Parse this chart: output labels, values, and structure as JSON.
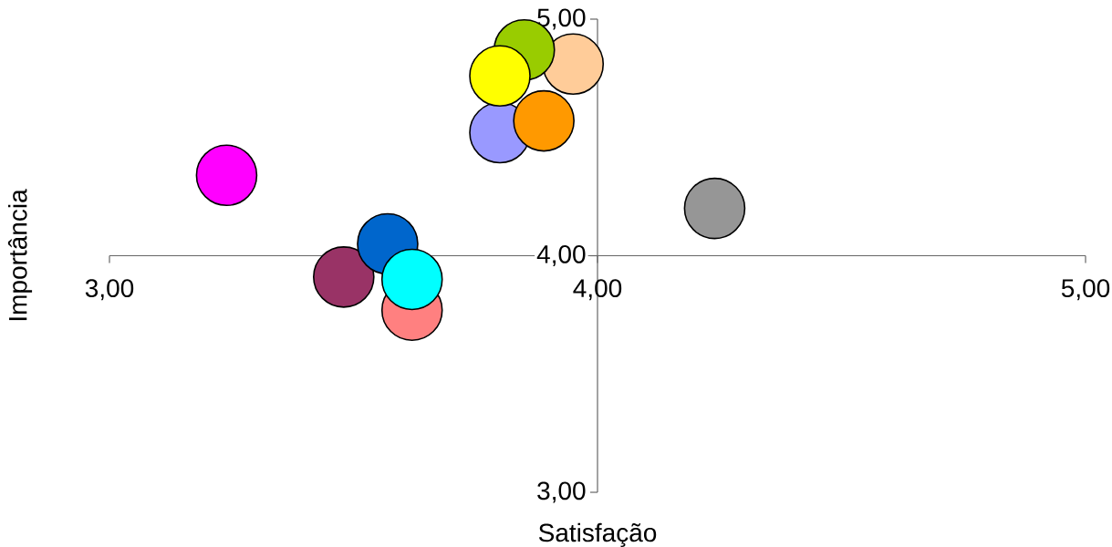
{
  "chart_data": {
    "type": "bubble",
    "xlabel": "Satisfação",
    "ylabel": "Importância",
    "x": [
      3.24,
      4.24,
      3.8,
      3.89,
      3.95,
      3.85,
      3.8,
      3.48,
      3.62,
      3.57,
      3.62
    ],
    "values": [
      4.34,
      4.2,
      4.52,
      4.57,
      4.81,
      4.87,
      4.76,
      3.91,
      3.77,
      4.05,
      3.9
    ],
    "sizes": [
      1,
      1,
      1,
      1,
      1,
      1,
      1,
      1,
      1,
      1,
      1
    ],
    "colors": [
      "#ff00ff",
      "#969696",
      "#9999ff",
      "#ff9900",
      "#ffcc99",
      "#99cc00",
      "#ffff00",
      "#993366",
      "#ff8080",
      "#0066cc",
      "#00ffff"
    ],
    "xlim": [
      3,
      5
    ],
    "ylim": [
      3,
      5
    ],
    "xticks": [
      {
        "value": 3,
        "label": "3,00"
      },
      {
        "value": 4,
        "label": "4,00"
      },
      {
        "value": 5,
        "label": "5,00"
      }
    ],
    "yticks": [
      {
        "value": 3,
        "label": "3,00"
      },
      {
        "value": 4,
        "label": "4,00"
      },
      {
        "value": 5,
        "label": "5,00"
      }
    ]
  }
}
